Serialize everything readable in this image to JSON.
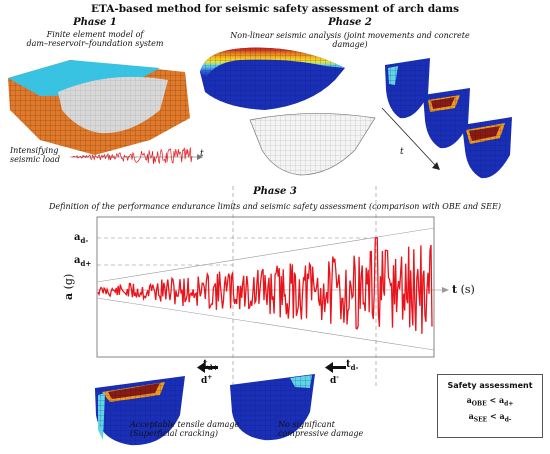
{
  "title": "ETA-based method for seismic safety assessment of arch dams",
  "phase1": {
    "heading": "Phase 1",
    "caption_line1": "Finite element model of",
    "caption_line2": "dam–reservoir–foundation system",
    "load_line1": "Intensifying",
    "load_line2": "seismic load",
    "t_label": "t"
  },
  "phase2": {
    "heading": "Phase 2",
    "caption": "Non-linear seismic analysis (joint movements and concrete damage)",
    "t_label": "t"
  },
  "phase3": {
    "heading": "Phase 3",
    "caption": "Definition of the performance endurance limits and seismic safety assessment (comparison with OBE and SEE)",
    "y_axis_main": "a",
    "y_axis_unit": "(g)",
    "x_axis_main": "t",
    "x_axis_unit": "(s)",
    "a_d_minus": "a",
    "a_d_minus_sub": "d-",
    "a_d_plus": "a",
    "a_d_plus_sub": "d+",
    "t_d_plus": "t",
    "t_d_plus_sub": "d+",
    "t_d_minus": "t",
    "t_d_minus_sub": "d-",
    "d_plus": "d",
    "d_plus_sup": "+",
    "d_minus": "d",
    "d_minus_sup": "-",
    "tensile_line1": "Acceptable tensile damage",
    "tensile_line2": "(Superficial cracking)",
    "compressive_line1": "No significant",
    "compressive_line2": "compressive damage"
  },
  "safety": {
    "heading": "Safety assessment",
    "eq1_a": "a",
    "eq1_sub": "OBE",
    "eq1_rel": "<",
    "eq1_b": "a",
    "eq1_bsub": "d+",
    "eq2_a": "a",
    "eq2_sub": "SEE",
    "eq2_rel": "<",
    "eq2_b": "a",
    "eq2_bsub": "d-"
  },
  "colors": {
    "signal": "#e8141b",
    "damage_dark": "#8b1a10",
    "model_blue": "#1a2fb8",
    "reservoir": "#33c4e6",
    "foundation": "#e07a2a"
  }
}
